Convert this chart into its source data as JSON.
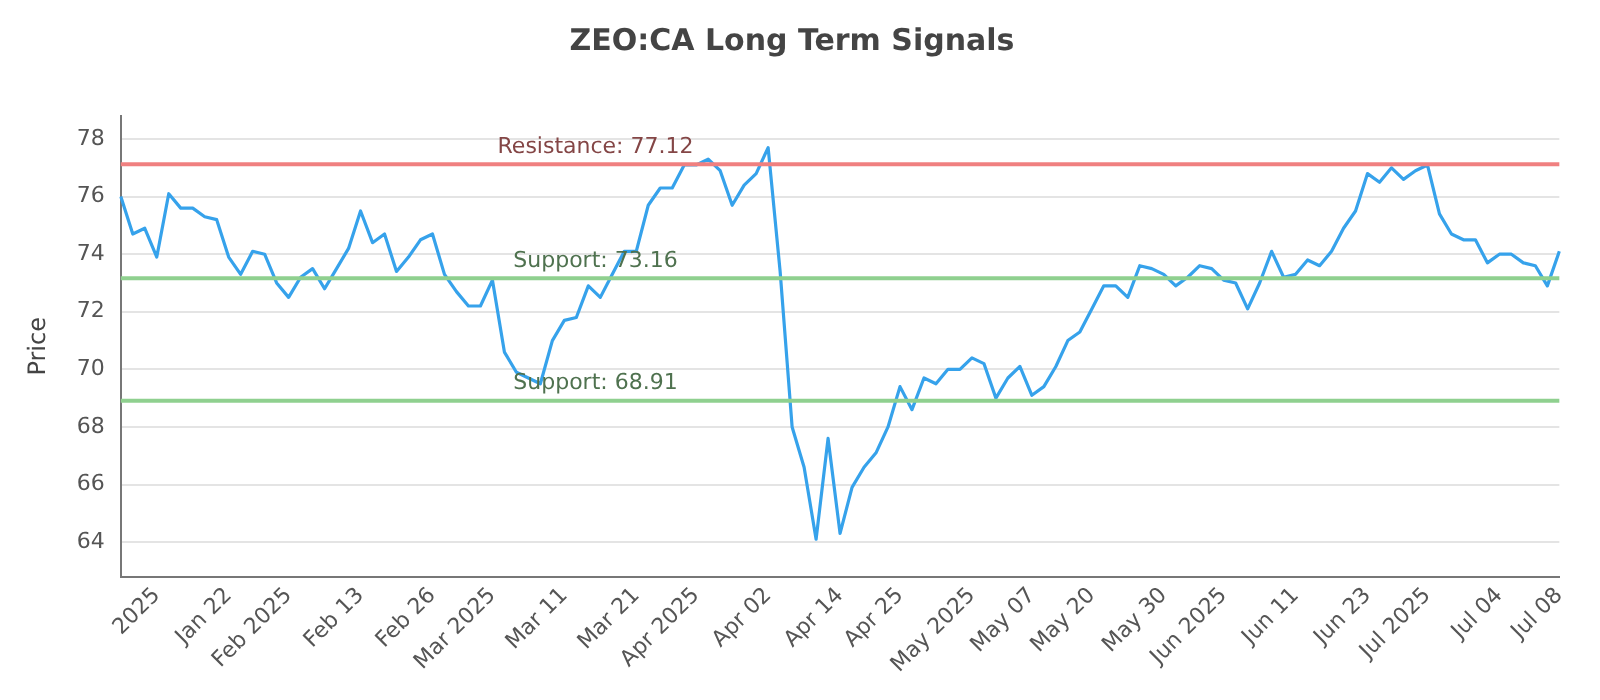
{
  "chart_data": {
    "type": "line",
    "title": "ZEO:CA Long Term Signals",
    "ylabel": "Price",
    "categories": [
      null,
      null,
      null,
      "2025",
      null,
      null,
      null,
      null,
      null,
      "Jan 22",
      null,
      null,
      null,
      null,
      "Feb 2025",
      null,
      null,
      null,
      null,
      null,
      "Feb 13",
      null,
      null,
      null,
      null,
      null,
      "Feb 26",
      null,
      null,
      null,
      null,
      "Mar 2025",
      null,
      null,
      null,
      null,
      null,
      "Mar 11",
      null,
      null,
      null,
      null,
      null,
      "Mar 21",
      null,
      null,
      null,
      null,
      "Apr 2025",
      null,
      null,
      null,
      null,
      null,
      "Apr 02",
      null,
      null,
      null,
      null,
      null,
      "Apr 14",
      null,
      null,
      null,
      null,
      "Apr 25",
      null,
      null,
      null,
      null,
      null,
      "May 2025",
      null,
      null,
      null,
      null,
      "May 07",
      null,
      null,
      null,
      null,
      "May 20",
      null,
      null,
      null,
      null,
      null,
      "May 30",
      null,
      null,
      null,
      null,
      "Jun 2025",
      null,
      null,
      null,
      null,
      null,
      "Jun 11",
      null,
      null,
      null,
      null,
      null,
      "Jun 23",
      null,
      null,
      null,
      null,
      "Jul 2025",
      null,
      null,
      null,
      null,
      null,
      "Jul 04",
      null,
      null,
      null,
      null,
      "Jul 08"
    ],
    "series": [
      {
        "color": "#36a2eb",
        "values": [
          76.0,
          74.7,
          74.9,
          73.9,
          76.1,
          75.6,
          75.6,
          75.3,
          75.2,
          73.9,
          73.3,
          74.1,
          74.0,
          73.0,
          72.5,
          73.2,
          73.5,
          72.8,
          73.5,
          74.2,
          75.5,
          74.4,
          74.7,
          73.4,
          73.9,
          74.5,
          74.7,
          73.3,
          72.7,
          72.2,
          72.2,
          73.1,
          70.6,
          69.9,
          69.7,
          69.5,
          71.0,
          71.7,
          71.8,
          72.9,
          72.5,
          73.3,
          74.1,
          74.1,
          75.7,
          76.3,
          76.3,
          77.1,
          77.1,
          77.3,
          76.9,
          75.7,
          76.4,
          76.8,
          77.7,
          73.4,
          68.0,
          66.6,
          64.1,
          67.6,
          64.3,
          65.9,
          66.6,
          67.1,
          68.0,
          69.4,
          68.6,
          69.7,
          69.5,
          70.0,
          70.0,
          70.4,
          70.2,
          69.0,
          69.7,
          70.1,
          69.1,
          69.4,
          70.1,
          71.0,
          71.3,
          72.1,
          72.9,
          72.9,
          72.5,
          73.6,
          73.5,
          73.3,
          72.9,
          73.2,
          73.6,
          73.5,
          73.1,
          73.0,
          72.1,
          73.0,
          74.1,
          73.2,
          73.3,
          73.8,
          73.6,
          74.1,
          74.9,
          75.5,
          76.8,
          76.5,
          77.0,
          76.6,
          76.9,
          77.1,
          75.4,
          74.7,
          74.5,
          74.5,
          73.7,
          74.0,
          74.0,
          73.7,
          73.6,
          72.9,
          74.1
        ]
      }
    ],
    "ylim": [
      62.8,
      78.8
    ],
    "yticks": [
      64,
      66,
      68,
      70,
      72,
      74,
      76,
      78
    ],
    "ref_lines": [
      {
        "axis": "y",
        "value": 77.12,
        "label": "Resistance: 77.12",
        "color": "#f08080"
      },
      {
        "axis": "y",
        "value": 73.16,
        "label": "Support: 73.16",
        "color": "#8fd08f"
      },
      {
        "axis": "y",
        "value": 68.91,
        "label": "Support: 68.91",
        "color": "#8fd08f"
      }
    ],
    "grid": "y",
    "legend": false,
    "marker": "none",
    "line_style": "solid"
  }
}
